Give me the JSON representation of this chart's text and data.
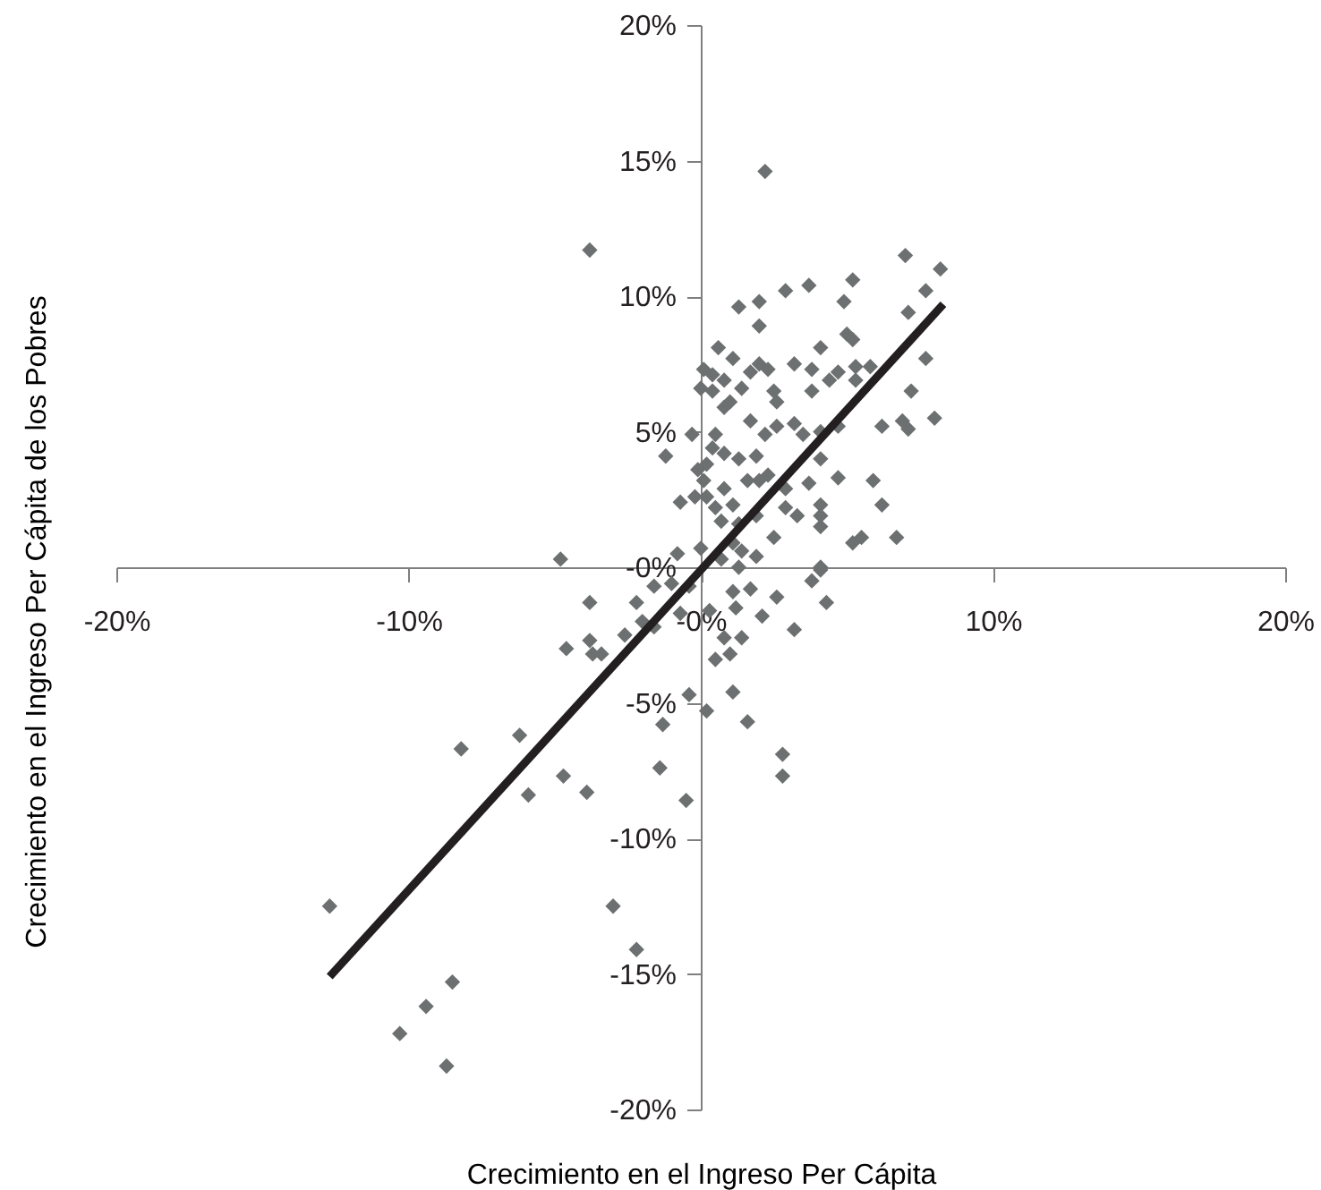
{
  "chart_data": {
    "type": "scatter",
    "xlabel": "Crecimiento en el Ingreso Per Cápita",
    "ylabel": "Crecimiento en el Ingreso Per Cápita de los Pobres",
    "xlim": [
      -20,
      20
    ],
    "ylim": [
      -20,
      20
    ],
    "xticks": [
      {
        "value": -20,
        "label": "-20%"
      },
      {
        "value": -10,
        "label": "-10%"
      },
      {
        "value": 0,
        "label": "-0%"
      },
      {
        "value": 10,
        "label": "10%"
      },
      {
        "value": 20,
        "label": "20%"
      }
    ],
    "yticks": [
      {
        "value": -20,
        "label": "-20%"
      },
      {
        "value": -15,
        "label": "-15%"
      },
      {
        "value": -10,
        "label": "-10%"
      },
      {
        "value": -5,
        "label": "-5%"
      },
      {
        "value": 0,
        "label": "-0%"
      },
      {
        "value": 5,
        "label": "5%"
      },
      {
        "value": 10,
        "label": "10%"
      },
      {
        "value": 15,
        "label": "15%"
      },
      {
        "value": 20,
        "label": "20%"
      }
    ],
    "grid": false,
    "series": [
      {
        "type": "scatter",
        "color": "#6d7070",
        "marker": "diamond",
        "x": [
          2.2,
          -3.8,
          7.0,
          8.2,
          5.2,
          3.7,
          2.9,
          2.0,
          1.3,
          4.9,
          7.7,
          2.0,
          7.1,
          4.1,
          5.0,
          5.2,
          0.6,
          1.1,
          7.7,
          0.1,
          0.4,
          0.8,
          1.7,
          2.0,
          2.3,
          3.2,
          3.8,
          4.4,
          4.7,
          5.3,
          5.8,
          0.0,
          0.4,
          1.0,
          1.4,
          2.5,
          2.6,
          3.8,
          5.3,
          7.2,
          0.8,
          1.7,
          2.6,
          3.2,
          3.5,
          2.2,
          4.1,
          4.7,
          6.2,
          6.9,
          7.1,
          8.0,
          -0.3,
          -1.2,
          0.4,
          0.5,
          0.8,
          1.3,
          1.9,
          -0.1,
          0.2,
          0.1,
          0.8,
          1.6,
          2.0,
          2.3,
          3.7,
          4.1,
          4.7,
          5.9,
          -0.7,
          -0.2,
          0.2,
          0.5,
          1.1,
          2.9,
          2.9,
          3.3,
          4.1,
          4.1,
          6.2,
          0.7,
          1.3,
          1.9,
          4.1,
          2.5,
          5.2,
          5.5,
          6.7,
          0.0,
          -0.8,
          1.1,
          1.4,
          1.9,
          -4.8,
          4.1,
          0.7,
          -3.8,
          -1.6,
          -1.0,
          -2.2,
          -0.4,
          1.1,
          1.7,
          1.3,
          2.6,
          1.2,
          2.1,
          0.3,
          -2.0,
          -1.6,
          -0.7,
          4.1,
          3.8,
          4.3,
          3.2,
          1.4,
          0.8,
          0.5,
          1.0,
          -2.6,
          -3.8,
          -3.7,
          -3.4,
          -0.4,
          0.2,
          1.1,
          1.6,
          -1.3,
          -1.4,
          -0.5,
          2.8,
          2.8,
          -3.9,
          -3.0,
          -2.2,
          -4.6,
          -8.2,
          -6.2,
          -5.9,
          -4.7,
          -12.7,
          -8.5,
          -9.4,
          -10.3,
          -8.7
        ],
        "values": [
          14.6,
          11.7,
          11.5,
          11.0,
          10.6,
          10.4,
          10.2,
          9.8,
          9.6,
          9.8,
          10.2,
          8.9,
          9.4,
          8.1,
          8.6,
          8.4,
          8.1,
          7.7,
          7.7,
          7.3,
          7.1,
          6.9,
          7.2,
          7.5,
          7.3,
          7.5,
          7.3,
          6.9,
          7.2,
          7.4,
          7.4,
          6.6,
          6.5,
          6.1,
          6.6,
          6.5,
          6.1,
          6.5,
          6.9,
          6.5,
          5.9,
          5.4,
          5.2,
          5.3,
          4.9,
          4.9,
          5.0,
          5.2,
          5.2,
          5.4,
          5.1,
          5.5,
          4.9,
          4.1,
          4.4,
          4.9,
          4.2,
          4.0,
          4.1,
          3.6,
          3.8,
          3.2,
          2.9,
          3.2,
          3.2,
          3.4,
          3.1,
          4.0,
          3.3,
          3.2,
          2.4,
          2.6,
          2.6,
          2.2,
          2.3,
          2.9,
          2.2,
          1.9,
          2.3,
          1.9,
          2.3,
          1.7,
          1.6,
          1.9,
          1.5,
          1.1,
          0.9,
          1.1,
          1.1,
          0.7,
          0.5,
          0.9,
          0.6,
          0.4,
          0.3,
          0.0,
          0.3,
          -1.3,
          -0.7,
          -0.6,
          -1.3,
          -0.7,
          -0.9,
          -0.8,
          0.0,
          -1.1,
          -1.5,
          -1.8,
          -1.6,
          -2.0,
          -2.2,
          -1.7,
          -0.1,
          -0.5,
          -1.3,
          -2.3,
          -2.6,
          -2.6,
          -3.4,
          -3.2,
          -2.5,
          -2.7,
          -3.2,
          -3.2,
          -4.7,
          -5.3,
          -4.6,
          -5.7,
          -5.8,
          -7.4,
          -8.6,
          -6.9,
          -7.7,
          -8.3,
          -12.5,
          -14.1,
          -3.0,
          -6.7,
          -6.2,
          -8.4,
          -7.7,
          -12.5,
          -15.3,
          -16.2,
          -17.2,
          -18.4
        ]
      },
      {
        "type": "line",
        "color": "#231f20",
        "x": [
          -12.7,
          8.3
        ],
        "values": [
          -15.1,
          9.7
        ]
      }
    ]
  }
}
